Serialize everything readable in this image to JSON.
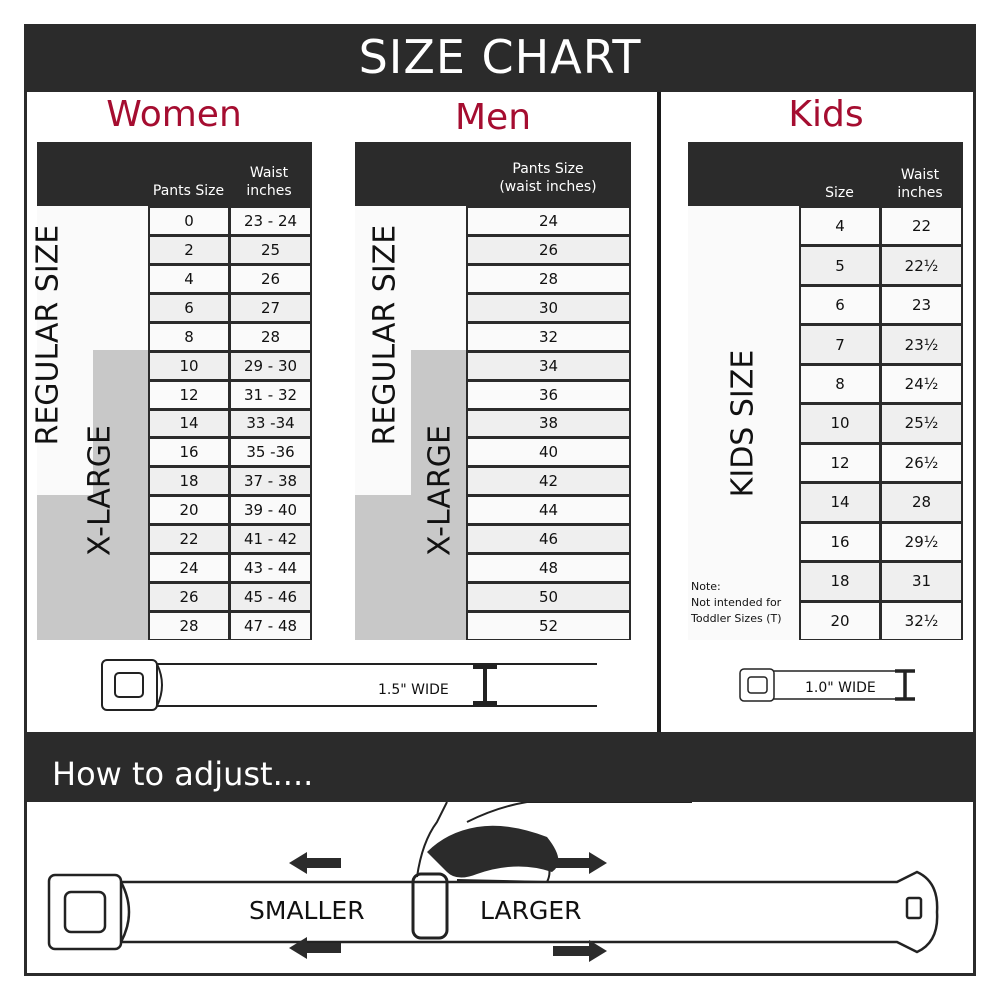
{
  "header": {
    "title": "SIZE CHART"
  },
  "women": {
    "title": "Women",
    "col1": "Pants Size",
    "col2": "Waist inches",
    "regular_label": "REGULAR SIZE",
    "xlarge_label": "X-LARGE",
    "rows": [
      [
        "0",
        "23 - 24"
      ],
      [
        "2",
        "25"
      ],
      [
        "4",
        "26"
      ],
      [
        "6",
        "27"
      ],
      [
        "8",
        "28"
      ],
      [
        "10",
        "29 - 30"
      ],
      [
        "12",
        "31 - 32"
      ],
      [
        "14",
        "33 -34"
      ],
      [
        "16",
        "35 -36"
      ],
      [
        "18",
        "37 - 38"
      ],
      [
        "20",
        "39 - 40"
      ],
      [
        "22",
        "41 - 42"
      ],
      [
        "24",
        "43 - 44"
      ],
      [
        "26",
        "45 - 46"
      ],
      [
        "28",
        "47 - 48"
      ]
    ],
    "belt_width": "1.5\" WIDE"
  },
  "men": {
    "title": "Men",
    "col1": "Pants Size (waist inches)",
    "regular_label": "REGULAR SIZE",
    "xlarge_label": "X-LARGE",
    "rows": [
      "24",
      "26",
      "28",
      "30",
      "32",
      "34",
      "36",
      "38",
      "40",
      "42",
      "44",
      "46",
      "48",
      "50",
      "52"
    ]
  },
  "kids": {
    "title": "Kids",
    "col1": "Size",
    "col2": "Waist inches",
    "label": "KIDS SIZE",
    "note_title": "Note:",
    "note_line1": "Not intended for",
    "note_line2": "Toddler Sizes (T)",
    "rows": [
      [
        "4",
        "22"
      ],
      [
        "5",
        "22½"
      ],
      [
        "6",
        "23"
      ],
      [
        "7",
        "23½"
      ],
      [
        "8",
        "24½"
      ],
      [
        "10",
        "25½"
      ],
      [
        "12",
        "26½"
      ],
      [
        "14",
        "28"
      ],
      [
        "16",
        "29½"
      ],
      [
        "18",
        "31"
      ],
      [
        "20",
        "32½"
      ]
    ],
    "belt_width": "1.0\" WIDE"
  },
  "adjust": {
    "title": "How to adjust....",
    "smaller": "SMALLER",
    "larger": "LARGER"
  },
  "colors": {
    "accent": "#a50d30",
    "dark": "#2b2b2b",
    "xlarge_fill": "#c8c8c8",
    "alt_row": "#efefef"
  }
}
